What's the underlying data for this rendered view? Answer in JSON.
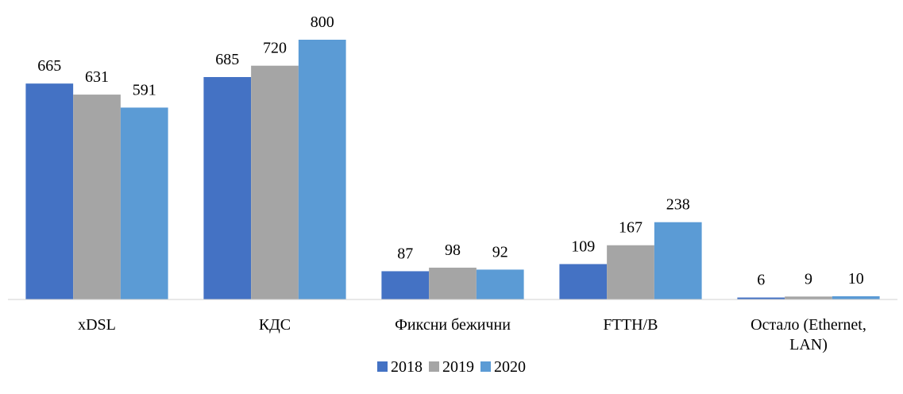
{
  "chart_data": {
    "type": "bar",
    "categories": [
      "xDSL",
      "КДС",
      "Фиксни бежични",
      "FTTH/B",
      "Остало (Ethernet, LAN)"
    ],
    "series": [
      {
        "name": "2018",
        "color": "#4472c4",
        "values": [
          665,
          685,
          87,
          109,
          6
        ]
      },
      {
        "name": "2019",
        "color": "#a5a5a5",
        "values": [
          631,
          720,
          98,
          167,
          9
        ]
      },
      {
        "name": "2020",
        "color": "#5b9bd5",
        "values": [
          591,
          800,
          92,
          238,
          10
        ]
      }
    ],
    "ylim": [
      0,
      800
    ],
    "legend": "bottom"
  }
}
